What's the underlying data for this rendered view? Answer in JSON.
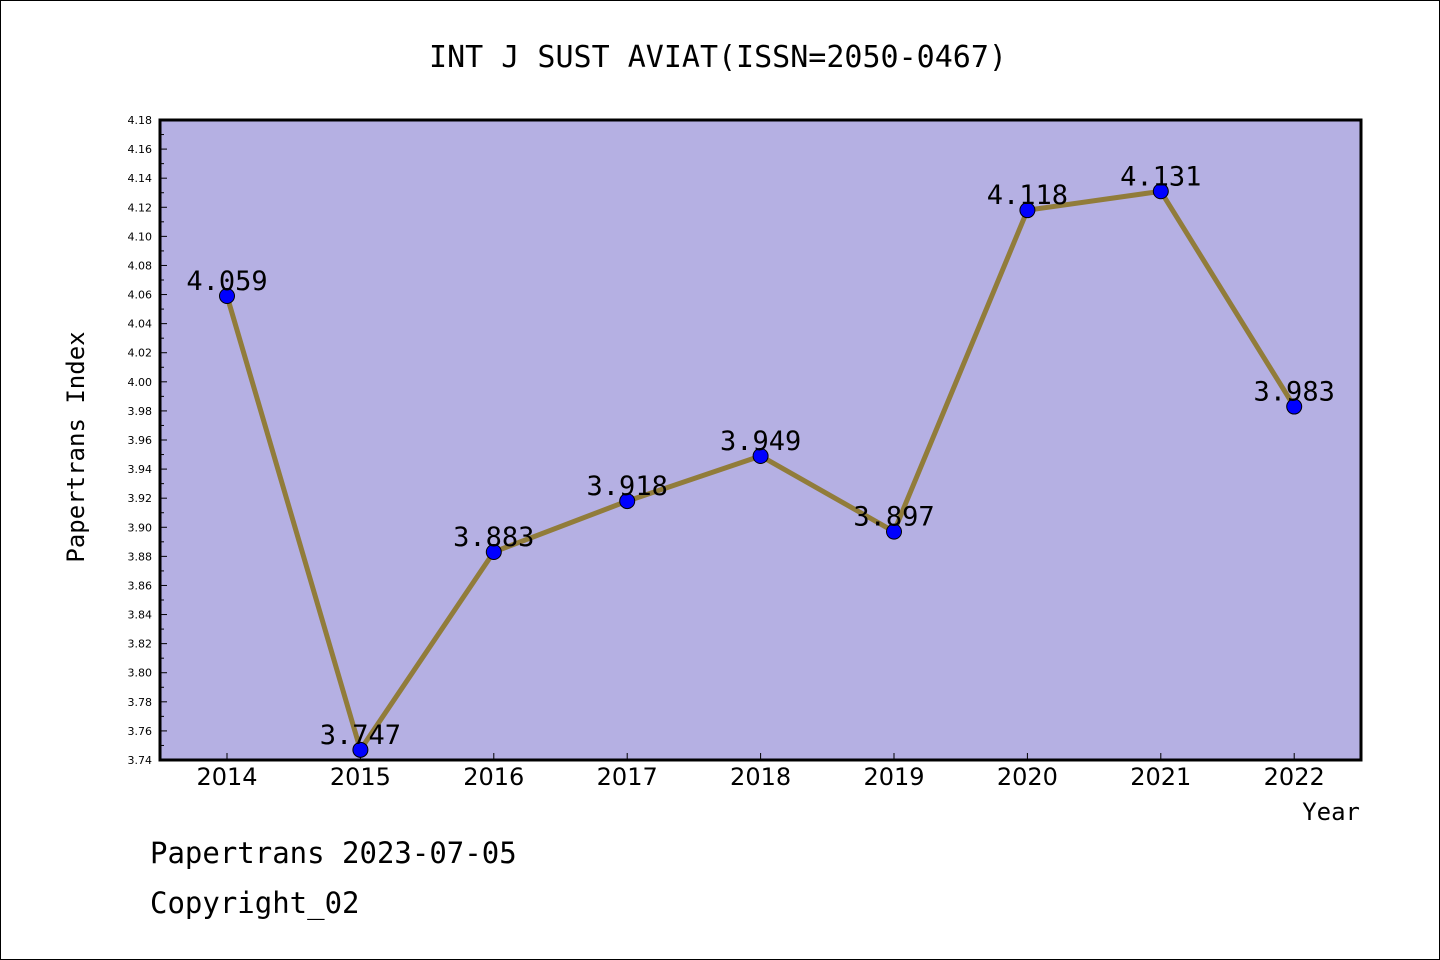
{
  "chart_data": {
    "type": "line",
    "title": "INT J SUST AVIAT(ISSN=2050-0467)",
    "xlabel": "Year",
    "ylabel": "Papertrans Index",
    "categories": [
      "2014",
      "2015",
      "2016",
      "2017",
      "2018",
      "2019",
      "2020",
      "2021",
      "2022"
    ],
    "values": [
      4.059,
      3.747,
      3.883,
      3.918,
      3.949,
      3.897,
      4.118,
      4.131,
      3.983
    ],
    "data_labels": [
      "4.059",
      "3.747",
      "3.883",
      "3.918",
      "3.949",
      "3.897",
      "4.118",
      "4.131",
      "3.983"
    ],
    "ylim": [
      3.74,
      4.18
    ],
    "yticks": [
      "3.74",
      "3.76",
      "3.78",
      "3.80",
      "3.82",
      "3.84",
      "3.86",
      "3.88",
      "3.90",
      "3.92",
      "3.94",
      "3.96",
      "3.98",
      "4.00",
      "4.02",
      "4.04",
      "4.06",
      "4.08",
      "4.10",
      "4.12",
      "4.14",
      "4.16",
      "4.18"
    ],
    "grid": false,
    "colors": {
      "plot_background": "#b5b0e3",
      "line": "#917c3a",
      "marker": "#0000ff"
    }
  },
  "footer": {
    "line1": "Papertrans 2023-07-05",
    "line2": "Copyright_02"
  }
}
